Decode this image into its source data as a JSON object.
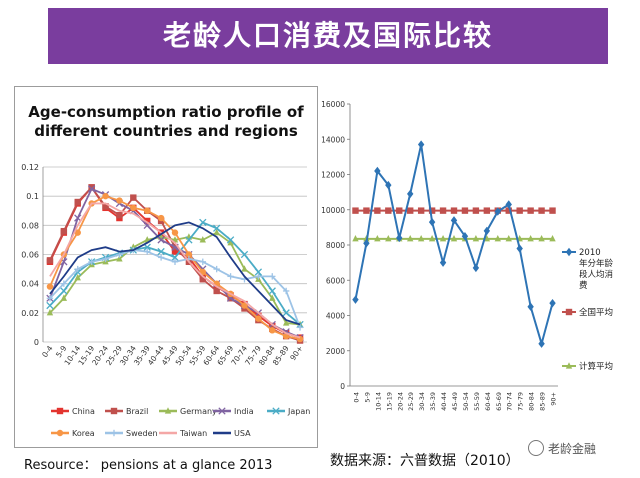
{
  "banner": {
    "title": "老龄人口消费及国际比较"
  },
  "left_source": "Resource： pensions at a glance 2013",
  "right_source": "数据来源：六普数据（2010）",
  "watermark": "老龄金融",
  "chart_data": [
    {
      "type": "line",
      "title": "Age-consumption ratio profile of different countries and regions",
      "categories": [
        "0-4",
        "5-9",
        "10-14",
        "15-19",
        "20-24",
        "25-29",
        "30-34",
        "35-39",
        "40-44",
        "45-49",
        "50-54",
        "55-59",
        "60-64",
        "65-69",
        "70-74",
        "75-79",
        "80-84",
        "85-89",
        "90+"
      ],
      "ylim": [
        0,
        0.12
      ],
      "yticks": [
        "0",
        "0.02",
        "0.04",
        "0.06",
        "0.08",
        "0.1",
        "0.12"
      ],
      "grid": true,
      "legend_position": "bottom",
      "series": [
        {
          "name": "China",
          "color": "#e3342f",
          "marker": "square",
          "values": [
            0.055,
            0.075,
            0.095,
            0.106,
            0.092,
            0.085,
            0.092,
            0.083,
            0.075,
            0.062,
            0.058,
            0.045,
            0.038,
            0.032,
            0.026,
            0.018,
            0.011,
            0.006,
            0.003
          ]
        },
        {
          "name": "Brazil",
          "color": "#c0504d",
          "marker": "square",
          "values": [
            0.056,
            0.076,
            0.096,
            0.106,
            0.093,
            0.087,
            0.099,
            0.09,
            0.083,
            0.065,
            0.055,
            0.043,
            0.035,
            0.03,
            0.023,
            0.015,
            0.009,
            0.004,
            0.001
          ]
        },
        {
          "name": "Germany",
          "color": "#9bbb59",
          "marker": "triangle",
          "values": [
            0.02,
            0.03,
            0.044,
            0.053,
            0.055,
            0.057,
            0.065,
            0.07,
            0.072,
            0.07,
            0.072,
            0.07,
            0.075,
            0.068,
            0.05,
            0.043,
            0.03,
            0.013,
            0.012
          ]
        },
        {
          "name": "India",
          "color": "#8064a2",
          "marker": "x",
          "values": [
            0.03,
            0.055,
            0.085,
            0.105,
            0.101,
            0.095,
            0.09,
            0.08,
            0.07,
            0.065,
            0.06,
            0.05,
            0.04,
            0.03,
            0.025,
            0.02,
            0.012,
            0.007,
            0.003
          ]
        },
        {
          "name": "Japan",
          "color": "#4bacc6",
          "marker": "x",
          "values": [
            0.025,
            0.035,
            0.048,
            0.055,
            0.058,
            0.061,
            0.063,
            0.065,
            0.062,
            0.058,
            0.07,
            0.082,
            0.078,
            0.07,
            0.06,
            0.048,
            0.035,
            0.02,
            0.012
          ]
        },
        {
          "name": "Korea",
          "color": "#f79646",
          "marker": "circle",
          "values": [
            0.038,
            0.06,
            0.075,
            0.095,
            0.1,
            0.097,
            0.092,
            0.09,
            0.085,
            0.075,
            0.06,
            0.048,
            0.04,
            0.033,
            0.025,
            0.016,
            0.008,
            0.004,
            0.002
          ]
        },
        {
          "name": "Sweden",
          "color": "#9dc3e6",
          "marker": "plus",
          "values": [
            0.03,
            0.04,
            0.05,
            0.055,
            0.057,
            0.06,
            0.063,
            0.062,
            0.058,
            0.055,
            0.057,
            0.055,
            0.05,
            0.045,
            0.043,
            0.045,
            0.045,
            0.035,
            0.01
          ]
        },
        {
          "name": "Taiwan",
          "color": "#f4a7a6",
          "marker": "line",
          "values": [
            0.045,
            0.06,
            0.08,
            0.095,
            0.095,
            0.09,
            0.088,
            0.082,
            0.075,
            0.068,
            0.055,
            0.045,
            0.038,
            0.033,
            0.028,
            0.02,
            0.012,
            0.006,
            0.003
          ]
        },
        {
          "name": "USA",
          "color": "#1f3c88",
          "marker": "line",
          "values": [
            0.033,
            0.045,
            0.058,
            0.063,
            0.065,
            0.062,
            0.063,
            0.068,
            0.074,
            0.08,
            0.082,
            0.078,
            0.072,
            0.058,
            0.045,
            0.035,
            0.025,
            0.015,
            0.012
          ]
        }
      ]
    },
    {
      "type": "line",
      "categories": [
        "0-4",
        "5-9",
        "10-14",
        "15-19",
        "20-24",
        "25-29",
        "30-34",
        "35-39",
        "40-44",
        "45-49",
        "50-54",
        "55-59",
        "60-64",
        "65-69",
        "70-74",
        "75-79",
        "80-84",
        "85-89",
        "90+"
      ],
      "ylim": [
        0,
        16000
      ],
      "yticks": [
        "0",
        "2000",
        "4000",
        "6000",
        "8000",
        "10000",
        "12000",
        "14000",
        "16000"
      ],
      "grid": false,
      "legend_position": "right",
      "series": [
        {
          "name": "2010年分年龄段人均消费",
          "color": "#2e74b5",
          "marker": "diamond",
          "values": [
            4900,
            8100,
            12200,
            11400,
            8400,
            10900,
            13700,
            9300,
            7000,
            9400,
            8500,
            6700,
            8800,
            9900,
            10300,
            7800,
            4500,
            2400,
            4700
          ]
        },
        {
          "name": "全国平均",
          "color": "#c0504d",
          "marker": "square",
          "values": [
            9950,
            9950,
            9950,
            9950,
            9950,
            9950,
            9950,
            9950,
            9950,
            9950,
            9950,
            9950,
            9950,
            9950,
            9950,
            9950,
            9950,
            9950,
            9950
          ]
        },
        {
          "name": "计算平均",
          "color": "#9bbb59",
          "marker": "triangle",
          "values": [
            8350,
            8350,
            8350,
            8350,
            8350,
            8350,
            8350,
            8350,
            8350,
            8350,
            8350,
            8350,
            8350,
            8350,
            8350,
            8350,
            8350,
            8350,
            8350
          ]
        }
      ]
    }
  ]
}
